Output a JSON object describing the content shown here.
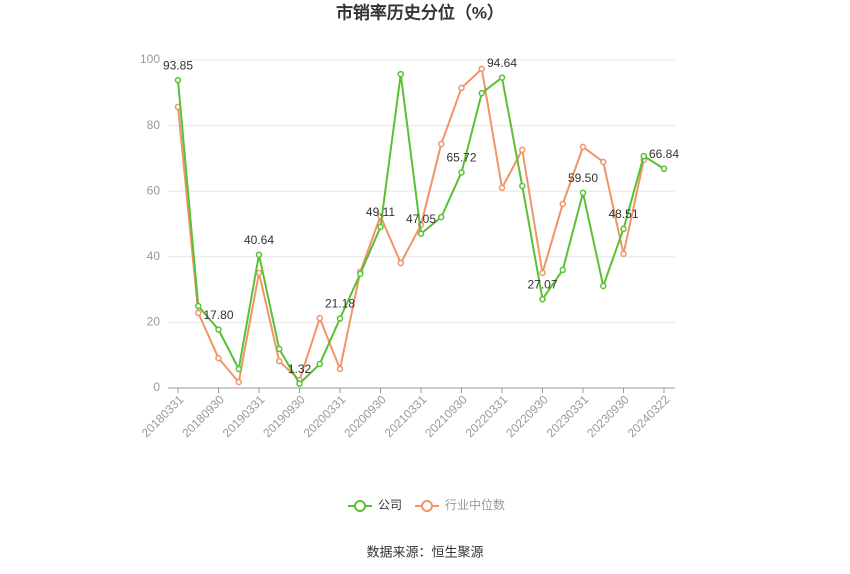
{
  "chart_data": {
    "type": "line",
    "title": "市销率历史分位（%）",
    "source": "数据来源：恒生聚源",
    "categories": [
      "20180331",
      null,
      "20180930",
      null,
      "20190331",
      null,
      "20190930",
      null,
      "20200331",
      null,
      "20200930",
      null,
      "20210331",
      null,
      "20210930",
      null,
      "20220331",
      null,
      "20220930",
      null,
      "20230331",
      null,
      "20230930",
      null,
      "20240322"
    ],
    "series": [
      {
        "name": "公司",
        "color": "#5ac034",
        "values": [
          93.85,
          25.0,
          17.8,
          5.8,
          40.64,
          11.9,
          1.32,
          7.3,
          21.18,
          34.8,
          49.11,
          95.7,
          47.05,
          52.1,
          65.72,
          89.9,
          94.64,
          61.6,
          27.07,
          36.0,
          59.5,
          31.1,
          48.51,
          70.7,
          66.84
        ],
        "value_labels": [
          "93.85",
          null,
          "17.80",
          null,
          "40.64",
          null,
          "1.32",
          null,
          "21.18",
          null,
          "49.11",
          null,
          "47.05",
          null,
          "65.72",
          null,
          "94.64",
          null,
          "27.07",
          null,
          "59.50",
          null,
          "48.51",
          null,
          "66.84"
        ]
      },
      {
        "name": "行业中位数",
        "color": "#f0946a",
        "values": [
          85.7,
          22.9,
          9.1,
          1.8,
          35.1,
          8.2,
          2.4,
          21.3,
          5.8,
          35.4,
          52.4,
          38.1,
          49.7,
          74.4,
          91.5,
          97.3,
          61.0,
          72.6,
          35.1,
          56.1,
          73.5,
          68.9,
          40.9,
          69.5,
          null
        ]
      }
    ],
    "ylim": [
      0,
      100
    ],
    "yticks": [
      0,
      20,
      40,
      60,
      80,
      100
    ],
    "grid": true,
    "legend": "bottom"
  }
}
